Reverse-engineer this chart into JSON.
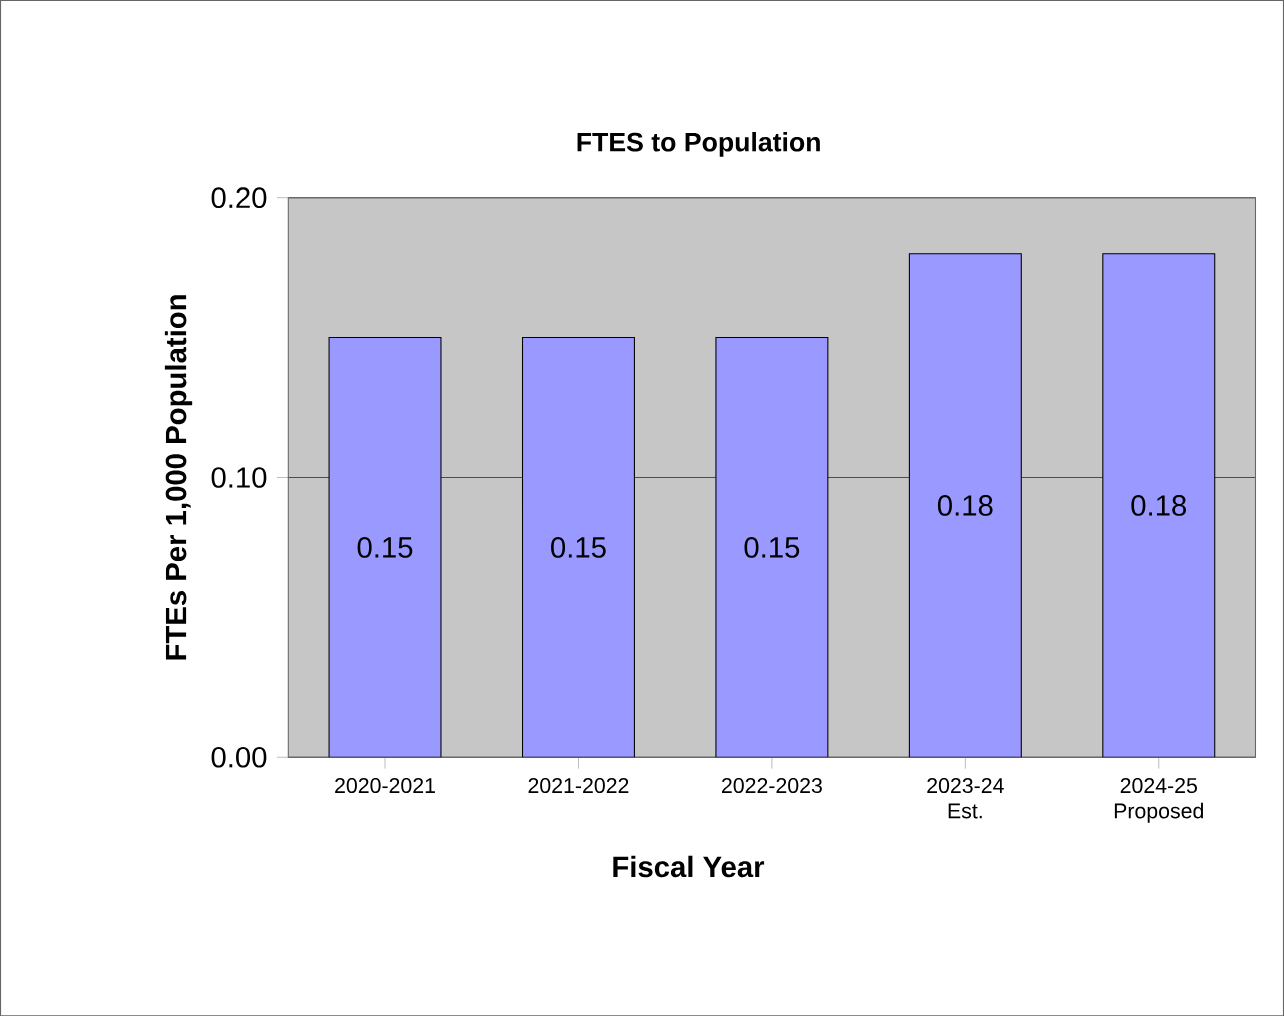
{
  "chart_data": {
    "type": "bar",
    "title": "FTES to Population",
    "xlabel": "Fiscal Year",
    "ylabel": "FTEs Per 1,000 Population",
    "categories": [
      "2020-2021",
      "2021-2022",
      "2022-2023",
      "2023-24 Est.",
      "2024-25 Proposed"
    ],
    "values": [
      0.15,
      0.15,
      0.15,
      0.18,
      0.18
    ],
    "color": "#9999ff",
    "ylim": [
      0,
      0.2
    ],
    "yticks": [
      {
        "value": 0,
        "label": "0.00"
      },
      {
        "value": 0.1,
        "label": "0.10"
      },
      {
        "value": 0.2,
        "label": "0.20"
      }
    ],
    "grid": "y",
    "data_labels": true
  }
}
